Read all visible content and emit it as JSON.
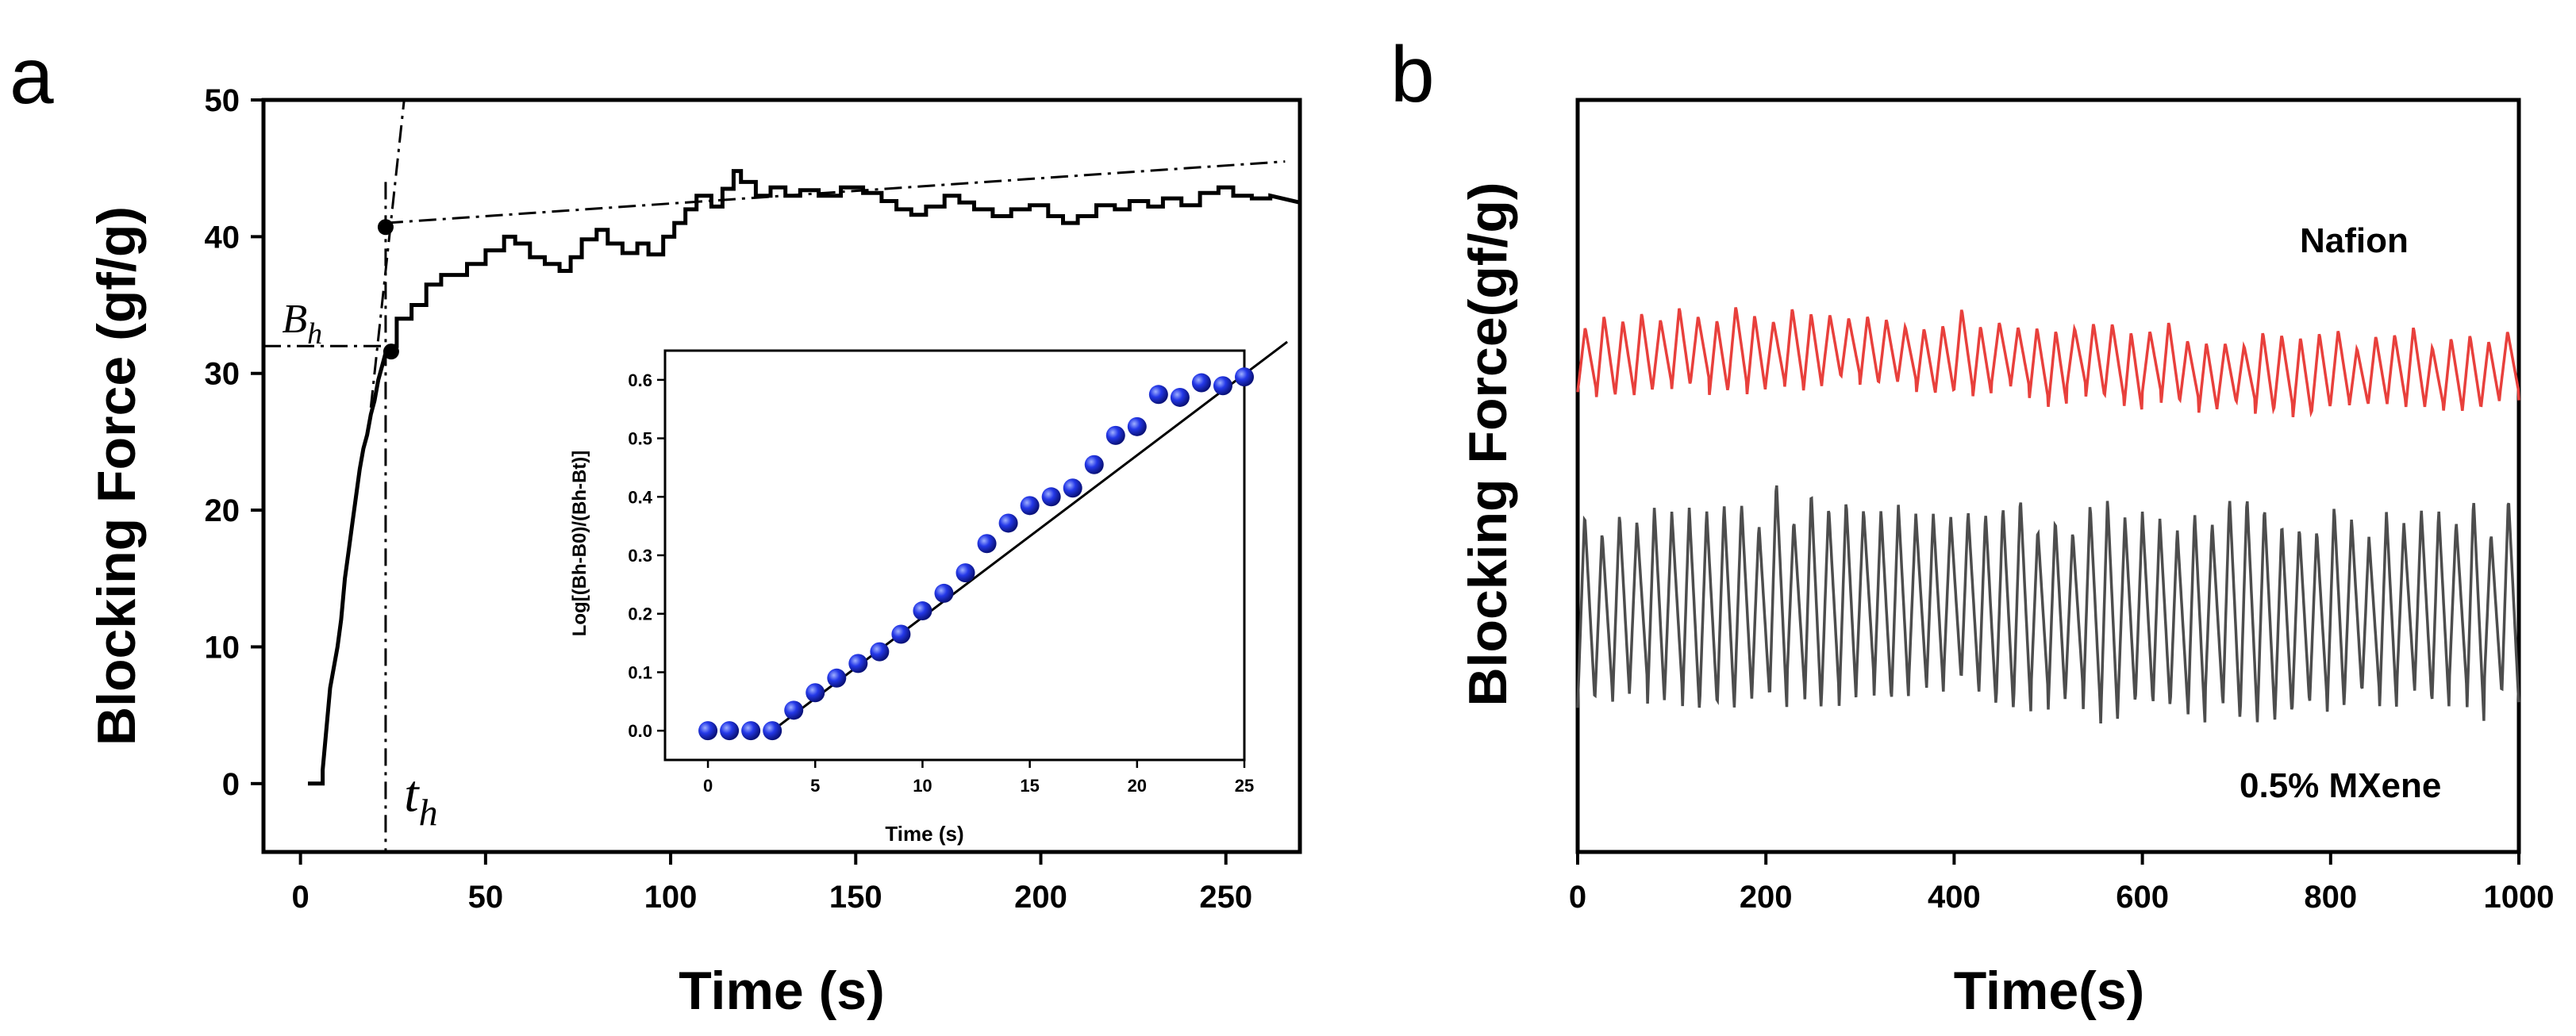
{
  "panels": {
    "a": {
      "label": "a"
    },
    "b": {
      "label": "b"
    }
  },
  "chart_data": [
    {
      "id": "a-main",
      "type": "line",
      "xlabel": "Time (s)",
      "ylabel": "Blocking Force (gf/g)",
      "xlim": [
        -10,
        270
      ],
      "ylim": [
        -5,
        50
      ],
      "xticks": [
        0,
        50,
        100,
        150,
        200,
        250
      ],
      "yticks": [
        0,
        10,
        20,
        30,
        40,
        50
      ],
      "series": [
        {
          "points": [
            [
              2,
              0
            ],
            [
              6,
              0
            ],
            [
              6,
              1
            ],
            [
              7,
              4
            ],
            [
              8,
              7
            ],
            [
              10,
              10
            ],
            [
              11,
              12
            ],
            [
              12,
              15
            ],
            [
              13,
              17
            ],
            [
              14,
              19
            ],
            [
              15,
              21
            ],
            [
              16,
              23
            ],
            [
              17,
              24.5
            ],
            [
              18,
              25.5
            ],
            [
              19,
              27
            ],
            [
              20,
              28
            ],
            [
              21,
              29.5
            ],
            [
              22,
              30.5
            ],
            [
              23,
              31.5
            ],
            [
              24,
              32
            ],
            [
              26,
              32
            ],
            [
              26,
              34
            ],
            [
              30,
              34
            ],
            [
              30,
              35
            ],
            [
              34,
              35
            ],
            [
              34,
              36.5
            ],
            [
              38,
              36.5
            ],
            [
              38,
              37.2
            ],
            [
              45,
              37.2
            ],
            [
              45,
              38
            ],
            [
              50,
              38
            ],
            [
              50,
              39
            ],
            [
              55,
              39
            ],
            [
              55,
              40
            ],
            [
              58,
              40
            ],
            [
              58,
              39.5
            ],
            [
              62,
              39.5
            ],
            [
              62,
              38.5
            ],
            [
              66,
              38.5
            ],
            [
              66,
              38
            ],
            [
              70,
              38
            ],
            [
              70,
              37.5
            ],
            [
              73,
              37.5
            ],
            [
              73,
              38.5
            ],
            [
              76,
              38.5
            ],
            [
              76,
              39.8
            ],
            [
              80,
              39.8
            ],
            [
              80,
              40.5
            ],
            [
              83,
              40.5
            ],
            [
              83,
              39.5
            ],
            [
              87,
              39.5
            ],
            [
              87,
              38.8
            ],
            [
              91,
              38.8
            ],
            [
              91,
              39.5
            ],
            [
              94,
              39.5
            ],
            [
              94,
              38.7
            ],
            [
              98,
              38.7
            ],
            [
              98,
              40
            ],
            [
              101,
              40
            ],
            [
              101,
              41
            ],
            [
              104,
              41
            ],
            [
              104,
              42
            ],
            [
              107,
              42
            ],
            [
              107,
              43
            ],
            [
              111,
              43
            ],
            [
              111,
              42.2
            ],
            [
              114,
              42.2
            ],
            [
              114,
              43.5
            ],
            [
              117,
              43.5
            ],
            [
              117,
              44.8
            ],
            [
              119,
              44.8
            ],
            [
              119,
              44
            ],
            [
              123,
              44
            ],
            [
              123,
              43
            ],
            [
              127,
              43
            ],
            [
              127,
              43.6
            ],
            [
              131,
              43.6
            ],
            [
              131,
              43
            ],
            [
              135,
              43
            ],
            [
              135,
              43.4
            ],
            [
              140,
              43.4
            ],
            [
              140,
              43
            ],
            [
              146,
              43
            ],
            [
              146,
              43.6
            ],
            [
              152,
              43.6
            ],
            [
              152,
              43.2
            ],
            [
              157,
              43.2
            ],
            [
              157,
              42.6
            ],
            [
              161,
              42.6
            ],
            [
              161,
              42
            ],
            [
              165,
              42
            ],
            [
              165,
              41.6
            ],
            [
              169,
              41.6
            ],
            [
              169,
              42.2
            ],
            [
              174,
              42.2
            ],
            [
              174,
              43
            ],
            [
              178,
              43
            ],
            [
              178,
              42.5
            ],
            [
              182,
              42.5
            ],
            [
              182,
              42
            ],
            [
              187,
              42
            ],
            [
              187,
              41.5
            ],
            [
              192,
              41.5
            ],
            [
              192,
              42
            ],
            [
              197,
              42
            ],
            [
              197,
              42.3
            ],
            [
              202,
              42.3
            ],
            [
              202,
              41.5
            ],
            [
              206,
              41.5
            ],
            [
              206,
              41
            ],
            [
              210,
              41
            ],
            [
              210,
              41.5
            ],
            [
              215,
              41.5
            ],
            [
              215,
              42.3
            ],
            [
              220,
              42.3
            ],
            [
              220,
              42
            ],
            [
              224,
              42
            ],
            [
              224,
              42.6
            ],
            [
              229,
              42.6
            ],
            [
              229,
              42.2
            ],
            [
              233,
              42.2
            ],
            [
              233,
              42.8
            ],
            [
              238,
              42.8
            ],
            [
              238,
              42.3
            ],
            [
              243,
              42.3
            ],
            [
              243,
              43.2
            ],
            [
              248,
              43.2
            ],
            [
              248,
              43.6
            ],
            [
              252,
              43.6
            ],
            [
              252,
              43
            ],
            [
              257,
              43
            ],
            [
              257,
              42.8
            ],
            [
              262,
              42.8
            ],
            [
              262,
              43
            ],
            [
              270,
              42.5
            ]
          ]
        }
      ],
      "tangent_lines": [
        {
          "from": [
            19,
            27.5
          ],
          "to": [
            28,
            50
          ]
        },
        {
          "from": [
            23,
            41
          ],
          "to": [
            266,
            45.5
          ]
        }
      ],
      "guide_lines": [
        {
          "from": [
            -10,
            32
          ],
          "to": [
            23,
            32
          ]
        },
        {
          "from": [
            23,
            44
          ],
          "to": [
            23,
            -5
          ]
        }
      ],
      "markers": [
        [
          23,
          40.7
        ],
        [
          24.5,
          31.6
        ]
      ],
      "annotations": [
        {
          "text": "B",
          "sub": "h",
          "x": -5,
          "y": 33
        },
        {
          "text": "t",
          "sub": "h",
          "x": 28,
          "y": -2
        }
      ]
    },
    {
      "id": "a-inset",
      "type": "scatter",
      "xlabel": "Time (s)",
      "ylabel": "Log[(Bh-B0)/(Bh-Bt)]",
      "xlim": [
        -2,
        25
      ],
      "ylim": [
        -0.05,
        0.65
      ],
      "xticks": [
        0,
        5,
        10,
        15,
        20,
        25
      ],
      "yticks": [
        0.0,
        0.1,
        0.2,
        0.3,
        0.4,
        0.5,
        0.6
      ],
      "x": [
        0,
        1,
        2,
        3,
        4,
        5,
        6,
        7,
        8,
        9,
        10,
        11,
        12,
        13,
        14,
        15,
        16,
        17,
        18,
        19,
        20,
        21,
        22,
        23,
        24,
        25
      ],
      "y": [
        0.0,
        0.0,
        0.0,
        0.0,
        0.035,
        0.065,
        0.09,
        0.115,
        0.135,
        0.165,
        0.205,
        0.235,
        0.27,
        0.32,
        0.355,
        0.385,
        0.4,
        0.415,
        0.455,
        0.505,
        0.52,
        0.575,
        0.57,
        0.595,
        0.59,
        0.605
      ],
      "fit_line": {
        "from": [
          3,
          0.0
        ],
        "to": [
          27,
          0.665
        ]
      }
    },
    {
      "id": "b",
      "type": "line",
      "xlabel": "Time(s)",
      "ylabel": "Blocking Force(gf/g)",
      "xlim": [
        0,
        1000
      ],
      "ylim": [
        0,
        100
      ],
      "xticks": [
        0,
        200,
        400,
        600,
        800,
        1000
      ],
      "series": [
        {
          "name": "Nafion",
          "color": "#e8403c",
          "cycles": 50,
          "center": 66,
          "amplitude": 4.6,
          "drift": -1.5
        },
        {
          "name": "0.5% MXene",
          "color": "#4d4d4d",
          "cycles": 54,
          "center": 32,
          "amplitude": 13,
          "drift": 1
        }
      ]
    }
  ]
}
